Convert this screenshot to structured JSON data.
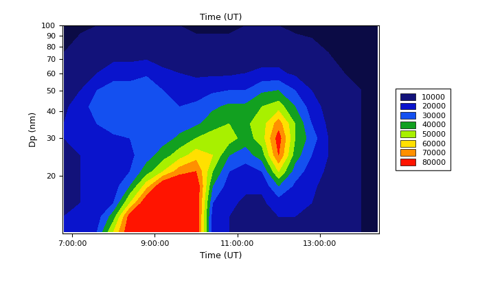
{
  "chart_data": {
    "type": "contour",
    "title": "Time (UT)",
    "x_label": "Time (UT)",
    "y_label": "Dp (nm)",
    "log": "y",
    "xlim": [
      6.76,
      14.44
    ],
    "ylim": [
      10.8,
      100
    ],
    "xticks": [
      {
        "value": 7,
        "label": "7:00:00"
      },
      {
        "value": 9,
        "label": "9:00:00"
      },
      {
        "value": 11,
        "label": "11:00:00"
      },
      {
        "value": 13,
        "label": "13:00:00"
      }
    ],
    "yticks": [
      20,
      30,
      40,
      50,
      60,
      70,
      80,
      90,
      100
    ],
    "x": [
      6.8,
      7.2,
      7.6,
      8.0,
      8.4,
      8.8,
      9.2,
      9.6,
      10.0,
      10.4,
      10.8,
      11.2,
      11.6,
      12.0,
      12.4,
      12.8,
      13.2,
      13.6,
      14.0,
      14.4
    ],
    "y": [
      11,
      13,
      15,
      18,
      21,
      25,
      30,
      35,
      42,
      50,
      60,
      75,
      100
    ],
    "cells": [
      [
        20000,
        22000,
        30000,
        60000,
        90000,
        95000,
        95000,
        95000,
        90000,
        25000,
        20000,
        15000,
        15000,
        20000,
        20000,
        18000,
        15000,
        12000,
        10000,
        10000
      ],
      [
        20000,
        22000,
        25000,
        45000,
        85000,
        95000,
        95000,
        95000,
        90000,
        25000,
        20000,
        15000,
        15000,
        20000,
        20000,
        18000,
        15000,
        12000,
        10000,
        10000
      ],
      [
        20000,
        20000,
        22000,
        30000,
        60000,
        90000,
        95000,
        95000,
        90000,
        30000,
        22000,
        18000,
        18000,
        25000,
        22000,
        20000,
        15000,
        12000,
        10000,
        10000
      ],
      [
        20000,
        20000,
        22000,
        25000,
        40000,
        65000,
        90000,
        95000,
        90000,
        40000,
        25000,
        22000,
        22000,
        40000,
        28000,
        22000,
        16000,
        12000,
        10000,
        10000
      ],
      [
        20000,
        20000,
        22000,
        25000,
        30000,
        45000,
        60000,
        75000,
        80000,
        50000,
        30000,
        25000,
        30000,
        60000,
        35000,
        25000,
        18000,
        12000,
        10000,
        10000
      ],
      [
        20000,
        20000,
        22000,
        25000,
        28000,
        35000,
        45000,
        55000,
        65000,
        60000,
        40000,
        35000,
        45000,
        80000,
        45000,
        30000,
        20000,
        13000,
        10000,
        10000
      ],
      [
        20000,
        22000,
        25000,
        28000,
        30000,
        32000,
        35000,
        42000,
        50000,
        55000,
        55000,
        45000,
        55000,
        85000,
        50000,
        35000,
        20000,
        13000,
        10000,
        10000
      ],
      [
        20000,
        25000,
        30000,
        35000,
        35000,
        35000,
        35000,
        35000,
        38000,
        45000,
        50000,
        48000,
        55000,
        75000,
        50000,
        30000,
        18000,
        12000,
        10000,
        10000
      ],
      [
        18000,
        25000,
        35000,
        38000,
        38000,
        40000,
        32000,
        30000,
        32000,
        38000,
        42000,
        42000,
        50000,
        55000,
        40000,
        25000,
        16000,
        12000,
        10000,
        10000
      ],
      [
        15000,
        20000,
        30000,
        35000,
        35000,
        38000,
        30000,
        25000,
        25000,
        28000,
        30000,
        30000,
        38000,
        40000,
        30000,
        20000,
        14000,
        11000,
        10000,
        10000
      ],
      [
        12000,
        15000,
        20000,
        25000,
        25000,
        28000,
        22000,
        20000,
        18000,
        18000,
        18000,
        20000,
        22000,
        22000,
        18000,
        14000,
        12000,
        10000,
        10000,
        10000
      ],
      [
        10000,
        12000,
        14000,
        15000,
        15000,
        15000,
        14000,
        13000,
        12000,
        12000,
        12000,
        13000,
        14000,
        14000,
        12000,
        11000,
        10000,
        10000,
        9000,
        9000
      ],
      [
        8000,
        9000,
        10000,
        10000,
        10000,
        10000,
        10000,
        10000,
        9000,
        9000,
        9000,
        10000,
        10000,
        10000,
        9000,
        9000,
        8000,
        8000,
        8000,
        8000
      ]
    ],
    "levels": [
      10000,
      20000,
      30000,
      40000,
      50000,
      60000,
      70000,
      80000
    ],
    "level_colors": [
      "#12127a",
      "#0a14cc",
      "#1450f0",
      "#12a020",
      "#a8f000",
      "#ffe000",
      "#ff9000",
      "#ff1400"
    ]
  }
}
